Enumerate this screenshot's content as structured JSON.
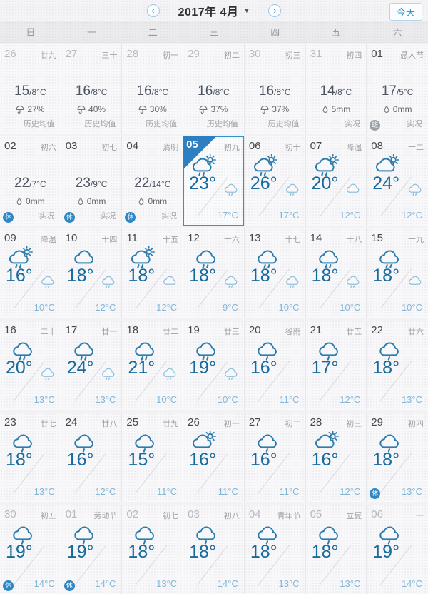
{
  "topbar": {
    "title": "2017年 4月",
    "caret": "▼",
    "prev_icon": "‹",
    "next_icon": "›",
    "today_label": "今天"
  },
  "weekdays": [
    "日",
    "一",
    "二",
    "三",
    "四",
    "五",
    "六"
  ],
  "colors": {
    "accent": "#3093cc",
    "temp_day": "#186a9d",
    "temp_night": "#82b6d8",
    "icon_day": "#2c7cae",
    "icon_night": "#92c0dd",
    "badge_rest": "#2f86c4",
    "badge_work": "#9aa0a8"
  },
  "cells": [
    {
      "day": "26",
      "lunar": "廿九",
      "muted": true,
      "type": "history",
      "temp_main": "15",
      "temp_sub": "/8°C",
      "info": "27%",
      "note": "历史均值"
    },
    {
      "day": "27",
      "lunar": "三十",
      "muted": true,
      "type": "history",
      "temp_main": "16",
      "temp_sub": "/8°C",
      "info": "40%",
      "note": "历史均值"
    },
    {
      "day": "28",
      "lunar": "初一",
      "muted": true,
      "type": "history",
      "temp_main": "16",
      "temp_sub": "/8°C",
      "info": "30%",
      "note": "历史均值"
    },
    {
      "day": "29",
      "lunar": "初二",
      "muted": true,
      "type": "history",
      "temp_main": "16",
      "temp_sub": "/8°C",
      "info": "37%",
      "note": "历史均值"
    },
    {
      "day": "30",
      "lunar": "初三",
      "muted": true,
      "type": "history",
      "temp_main": "16",
      "temp_sub": "/8°C",
      "info": "37%",
      "note": "历史均值"
    },
    {
      "day": "31",
      "lunar": "初四",
      "muted": true,
      "type": "actual",
      "temp_main": "14",
      "temp_sub": "/8°C",
      "info": "5mm",
      "note": "实况"
    },
    {
      "day": "01",
      "lunar": "愚人节",
      "type": "actual",
      "temp_main": "17",
      "temp_sub": "/5°C",
      "info": "0mm",
      "note": "实况",
      "badge": "班",
      "badge_kind": "work"
    },
    {
      "day": "02",
      "lunar": "初六",
      "type": "actual",
      "temp_main": "22",
      "temp_sub": "/7°C",
      "info": "0mm",
      "note": "实况",
      "badge": "休",
      "badge_kind": "rest"
    },
    {
      "day": "03",
      "lunar": "初七",
      "type": "actual",
      "temp_main": "23",
      "temp_sub": "/9°C",
      "info": "0mm",
      "note": "实况",
      "badge": "休",
      "badge_kind": "rest"
    },
    {
      "day": "04",
      "lunar": "清明",
      "type": "actual",
      "temp_main": "22",
      "temp_sub": "/14°C",
      "info": "0mm",
      "note": "实况",
      "badge": "休",
      "badge_kind": "rest"
    },
    {
      "day": "05",
      "lunar": "初九",
      "selected": true,
      "type": "forecast",
      "day_icon": "sun-cloud-rain",
      "day_temp": "23°",
      "night_icon": "cloud-rain",
      "night_temp": "17°C"
    },
    {
      "day": "06",
      "lunar": "初十",
      "type": "forecast",
      "day_icon": "sun-cloud-rain",
      "day_temp": "26°",
      "night_icon": "cloud-rain",
      "night_temp": "17°C"
    },
    {
      "day": "07",
      "lunar": "降温",
      "type": "forecast",
      "day_icon": "sun-cloud-rain",
      "day_temp": "20°",
      "night_icon": "cloud",
      "night_temp": "12°C"
    },
    {
      "day": "08",
      "lunar": "十二",
      "type": "forecast",
      "day_icon": "sun-cloud",
      "day_temp": "24°",
      "night_icon": "cloud-rain",
      "night_temp": "12°C"
    },
    {
      "day": "09",
      "lunar": "降温",
      "type": "forecast",
      "day_icon": "sun-cloud-rain",
      "day_temp": "16°",
      "night_icon": "cloud-rain",
      "night_temp": "10°C"
    },
    {
      "day": "10",
      "lunar": "十四",
      "type": "forecast",
      "day_icon": "cloud",
      "day_temp": "18°",
      "night_icon": "cloud-rain",
      "night_temp": "12°C"
    },
    {
      "day": "11",
      "lunar": "十五",
      "type": "forecast",
      "day_icon": "sun-cloud-rain",
      "day_temp": "18°",
      "night_icon": "cloud",
      "night_temp": "12°C"
    },
    {
      "day": "12",
      "lunar": "十六",
      "type": "forecast",
      "day_icon": "cloud-rain",
      "day_temp": "18°",
      "night_icon": "cloud-rain",
      "night_temp": "9°C"
    },
    {
      "day": "13",
      "lunar": "十七",
      "type": "forecast",
      "day_icon": "cloud-rain",
      "day_temp": "18°",
      "night_icon": "cloud-rain",
      "night_temp": "10°C"
    },
    {
      "day": "14",
      "lunar": "十八",
      "type": "forecast",
      "day_icon": "cloud-rain",
      "day_temp": "18°",
      "night_icon": "cloud-rain",
      "night_temp": "10°C"
    },
    {
      "day": "15",
      "lunar": "十九",
      "type": "forecast",
      "day_icon": "cloud-rain",
      "day_temp": "18°",
      "night_icon": "cloud",
      "night_temp": "10°C"
    },
    {
      "day": "16",
      "lunar": "二十",
      "type": "forecast",
      "day_icon": "cloud-rain",
      "day_temp": "20°",
      "night_icon": "cloud-rain",
      "night_temp": "13°C"
    },
    {
      "day": "17",
      "lunar": "廿一",
      "type": "forecast",
      "day_icon": "cloud-rain",
      "day_temp": "24°",
      "night_icon": "cloud-rain",
      "night_temp": "13°C"
    },
    {
      "day": "18",
      "lunar": "廿二",
      "type": "forecast",
      "day_icon": "cloud-rain",
      "day_temp": "21°",
      "night_icon": "cloud-rain",
      "night_temp": "10°C"
    },
    {
      "day": "19",
      "lunar": "廿三",
      "type": "forecast",
      "day_icon": "cloud-rain",
      "day_temp": "19°",
      "night_icon": "cloud-rain",
      "night_temp": "10°C"
    },
    {
      "day": "20",
      "lunar": "谷雨",
      "type": "forecast",
      "day_icon": "rain",
      "day_temp": "16°",
      "night_temp": "11°C"
    },
    {
      "day": "21",
      "lunar": "廿五",
      "type": "forecast",
      "day_icon": "rain",
      "day_temp": "17°",
      "night_temp": "12°C"
    },
    {
      "day": "22",
      "lunar": "廿六",
      "type": "forecast",
      "day_icon": "rain",
      "day_temp": "18°",
      "night_temp": "13°C"
    },
    {
      "day": "23",
      "lunar": "廿七",
      "type": "forecast",
      "day_icon": "rain",
      "day_temp": "18°",
      "night_temp": "13°C"
    },
    {
      "day": "24",
      "lunar": "廿八",
      "type": "forecast",
      "day_icon": "rain",
      "day_temp": "16°",
      "night_temp": "12°C"
    },
    {
      "day": "25",
      "lunar": "廿九",
      "type": "forecast",
      "day_icon": "rain",
      "day_temp": "15°",
      "night_temp": "11°C"
    },
    {
      "day": "26",
      "lunar": "初一",
      "type": "forecast",
      "day_icon": "sun-cloud",
      "day_temp": "16°",
      "night_temp": "11°C"
    },
    {
      "day": "27",
      "lunar": "初二",
      "type": "forecast",
      "day_icon": "rain",
      "day_temp": "16°",
      "night_temp": "11°C"
    },
    {
      "day": "28",
      "lunar": "初三",
      "type": "forecast",
      "day_icon": "sun-cloud",
      "day_temp": "16°",
      "night_temp": "12°C"
    },
    {
      "day": "29",
      "lunar": "初四",
      "type": "forecast",
      "day_icon": "rain",
      "day_temp": "18°",
      "night_temp": "13°C",
      "badge": "休",
      "badge_kind": "rest"
    },
    {
      "day": "30",
      "lunar": "初五",
      "muted": true,
      "type": "forecast",
      "day_icon": "rain",
      "day_temp": "19°",
      "night_temp": "14°C",
      "badge": "休",
      "badge_kind": "rest"
    },
    {
      "day": "01",
      "lunar": "劳动节",
      "muted": true,
      "type": "forecast",
      "day_icon": "rain",
      "day_temp": "19°",
      "night_temp": "14°C",
      "badge": "休",
      "badge_kind": "rest"
    },
    {
      "day": "02",
      "lunar": "初七",
      "muted": true,
      "type": "forecast",
      "day_icon": "rain",
      "day_temp": "18°",
      "night_temp": "13°C"
    },
    {
      "day": "03",
      "lunar": "初八",
      "muted": true,
      "type": "forecast",
      "day_icon": "rain",
      "day_temp": "18°",
      "night_temp": "14°C"
    },
    {
      "day": "04",
      "lunar": "青年节",
      "muted": true,
      "type": "forecast",
      "day_icon": "rain",
      "day_temp": "18°",
      "night_temp": "13°C"
    },
    {
      "day": "05",
      "lunar": "立夏",
      "muted": true,
      "type": "forecast",
      "day_icon": "rain",
      "day_temp": "18°",
      "night_temp": "13°C"
    },
    {
      "day": "06",
      "lunar": "十一",
      "muted": true,
      "type": "forecast",
      "day_icon": "rain",
      "day_temp": "19°",
      "night_temp": "14°C"
    }
  ]
}
